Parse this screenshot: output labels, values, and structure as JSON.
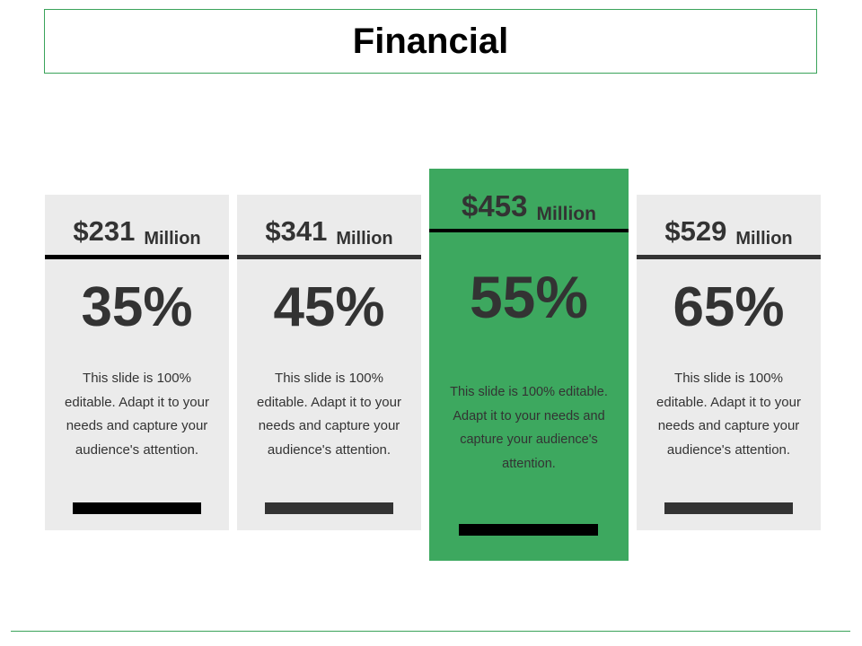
{
  "title": "Financial",
  "cards": [
    {
      "amount": "$231",
      "unit": "Million",
      "percent": "35%",
      "description": "This slide is 100% editable. Adapt it to your needs and capture your audience's attention."
    },
    {
      "amount": "$341",
      "unit": "Million",
      "percent": "45%",
      "description": "This slide is 100% editable. Adapt it to your needs and capture your audience's attention."
    },
    {
      "amount": "$453",
      "unit": "Million",
      "percent": "55%",
      "description": "This slide is 100% editable. Adapt it to your needs and capture your audience's attention."
    },
    {
      "amount": "$529",
      "unit": "Million",
      "percent": "65%",
      "description": "This slide is 100% editable. Adapt it to your needs and capture your audience's attention."
    }
  ],
  "colors": {
    "accent": "#3da85f",
    "card": "#ebebeb",
    "text": "#333333",
    "border": "#3aa35a"
  }
}
